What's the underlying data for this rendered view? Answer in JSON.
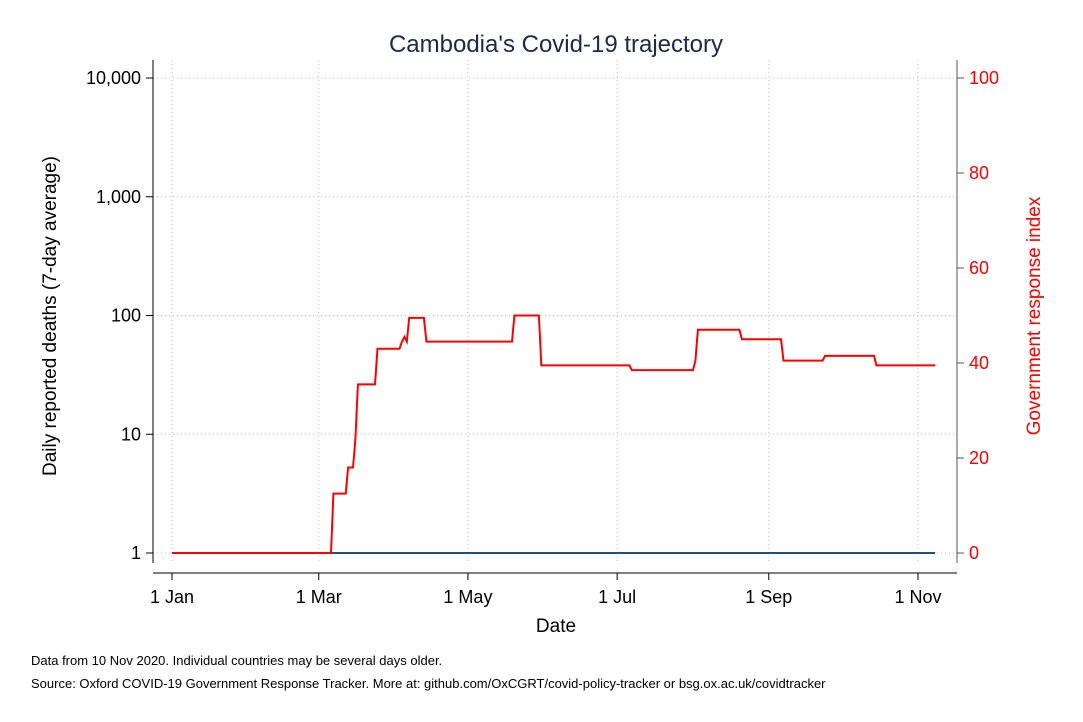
{
  "chart_data": {
    "type": "line",
    "title": "Cambodia's Covid-19 trajectory",
    "xlabel": "Date",
    "ylabel_left": "Daily reported deaths (7-day average)",
    "ylabel_right": "Government response index",
    "x_ticks": [
      {
        "date": "2020-01-01",
        "label": "1 Jan"
      },
      {
        "date": "2020-03-01",
        "label": "1 Mar"
      },
      {
        "date": "2020-05-01",
        "label": "1 May"
      },
      {
        "date": "2020-07-01",
        "label": "1 Jul"
      },
      {
        "date": "2020-09-01",
        "label": "1 Sep"
      },
      {
        "date": "2020-11-01",
        "label": "1 Nov"
      }
    ],
    "xlim": [
      "2020-01-01",
      "2020-11-10"
    ],
    "y_left_scale": "log",
    "y_left_ticks": [
      {
        "value": 1,
        "label": "1"
      },
      {
        "value": 10,
        "label": "10"
      },
      {
        "value": 100,
        "label": "100"
      },
      {
        "value": 1000,
        "label": "1,000"
      },
      {
        "value": 10000,
        "label": "10,000"
      }
    ],
    "y_right_ticks": [
      {
        "value": 0,
        "label": "0"
      },
      {
        "value": 20,
        "label": "20"
      },
      {
        "value": 40,
        "label": "40"
      },
      {
        "value": 60,
        "label": "60"
      },
      {
        "value": 80,
        "label": "80"
      },
      {
        "value": 100,
        "label": "100"
      }
    ],
    "y_right_lim": [
      0,
      100
    ],
    "grid": true,
    "series": [
      {
        "axis": "left",
        "color": "#1f4e8c",
        "points": [
          {
            "x": "2020-01-01",
            "y": 1
          },
          {
            "x": "2020-11-08",
            "y": 1
          }
        ]
      },
      {
        "axis": "right",
        "color": "#ff0000",
        "points": [
          {
            "x": "2020-01-01",
            "y": 0
          },
          {
            "x": "2020-03-06",
            "y": 0
          },
          {
            "x": "2020-03-07",
            "y": 12.5
          },
          {
            "x": "2020-03-12",
            "y": 12.5
          },
          {
            "x": "2020-03-13",
            "y": 18
          },
          {
            "x": "2020-03-15",
            "y": 18
          },
          {
            "x": "2020-03-16",
            "y": 24
          },
          {
            "x": "2020-03-17",
            "y": 35.5
          },
          {
            "x": "2020-03-24",
            "y": 35.5
          },
          {
            "x": "2020-03-25",
            "y": 43
          },
          {
            "x": "2020-04-03",
            "y": 43
          },
          {
            "x": "2020-04-04",
            "y": 44.5
          },
          {
            "x": "2020-04-05",
            "y": 45.5
          },
          {
            "x": "2020-04-06",
            "y": 44.5
          },
          {
            "x": "2020-04-07",
            "y": 49.5
          },
          {
            "x": "2020-04-13",
            "y": 49.5
          },
          {
            "x": "2020-04-14",
            "y": 44.5
          },
          {
            "x": "2020-05-19",
            "y": 44.5
          },
          {
            "x": "2020-05-20",
            "y": 50
          },
          {
            "x": "2020-05-30",
            "y": 50
          },
          {
            "x": "2020-05-31",
            "y": 39.5
          },
          {
            "x": "2020-07-06",
            "y": 39.5
          },
          {
            "x": "2020-07-07",
            "y": 38.5
          },
          {
            "x": "2020-08-01",
            "y": 38.5
          },
          {
            "x": "2020-08-02",
            "y": 40.5
          },
          {
            "x": "2020-08-03",
            "y": 47
          },
          {
            "x": "2020-08-20",
            "y": 47
          },
          {
            "x": "2020-08-21",
            "y": 45
          },
          {
            "x": "2020-09-06",
            "y": 45
          },
          {
            "x": "2020-09-07",
            "y": 40.5
          },
          {
            "x": "2020-09-23",
            "y": 40.5
          },
          {
            "x": "2020-09-24",
            "y": 41.5
          },
          {
            "x": "2020-10-14",
            "y": 41.5
          },
          {
            "x": "2020-10-15",
            "y": 39.5
          },
          {
            "x": "2020-11-08",
            "y": 39.5
          }
        ]
      }
    ]
  },
  "notes": {
    "line1": "Data from 10 Nov 2020. Individual countries may be several days older.",
    "line2": "Source: Oxford COVID-19 Government Response Tracker. More at: github.com/OxCGRT/covid-policy-tracker or bsg.ox.ac.uk/covidtracker"
  }
}
